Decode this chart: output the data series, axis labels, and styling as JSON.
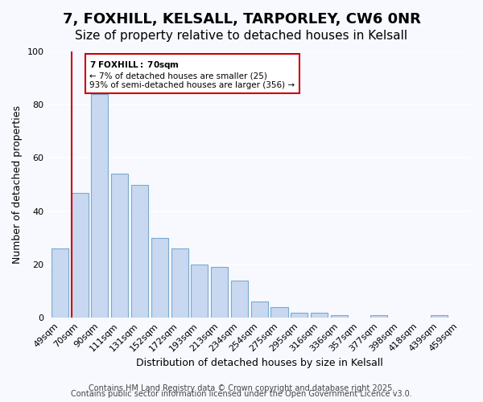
{
  "title": "7, FOXHILL, KELSALL, TARPORLEY, CW6 0NR",
  "subtitle": "Size of property relative to detached houses in Kelsall",
  "xlabel": "Distribution of detached houses by size in Kelsall",
  "ylabel": "Number of detached properties",
  "categories": [
    "49sqm",
    "70sqm",
    "90sqm",
    "111sqm",
    "131sqm",
    "152sqm",
    "172sqm",
    "193sqm",
    "213sqm",
    "234sqm",
    "254sqm",
    "275sqm",
    "295sqm",
    "316sqm",
    "336sqm",
    "357sqm",
    "377sqm",
    "398sqm",
    "418sqm",
    "439sqm",
    "459sqm"
  ],
  "values": [
    26,
    47,
    84,
    54,
    50,
    30,
    26,
    20,
    19,
    14,
    6,
    4,
    2,
    2,
    1,
    0,
    1,
    0,
    0,
    1,
    0
  ],
  "bar_color": "#c8d8f0",
  "bar_edge_color": "#7aaad0",
  "ylim": [
    0,
    100
  ],
  "yticks": [
    0,
    20,
    40,
    60,
    80,
    100
  ],
  "red_line_index": 1,
  "annotation_title": "7 FOXHILL: 70sqm",
  "annotation_line1": "← 7% of detached houses are smaller (25)",
  "annotation_line2": "93% of semi-detached houses are larger (356) →",
  "annotation_box_color": "#ffffff",
  "annotation_border_color": "#cc0000",
  "red_line_color": "#cc0000",
  "footer1": "Contains HM Land Registry data © Crown copyright and database right 2025.",
  "footer2": "Contains public sector information licensed under the Open Government Licence v3.0.",
  "background_color": "#f7f9ff",
  "grid_color": "#ffffff",
  "title_fontsize": 13,
  "subtitle_fontsize": 11,
  "axis_label_fontsize": 9,
  "tick_fontsize": 8,
  "footer_fontsize": 7
}
